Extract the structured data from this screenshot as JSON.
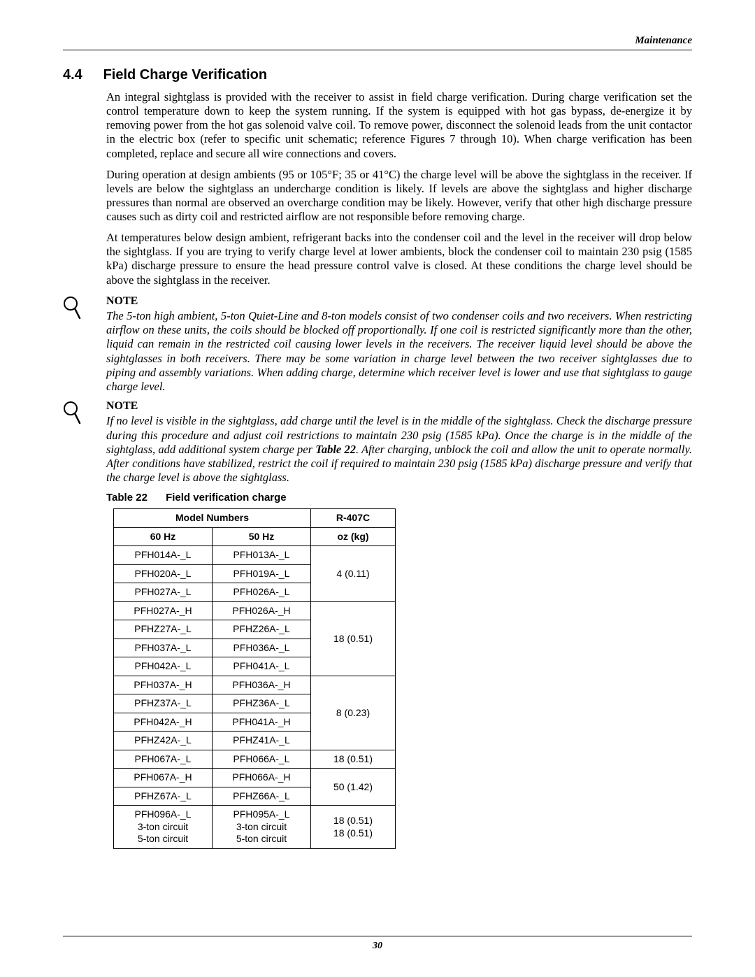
{
  "header": {
    "right_label": "Maintenance"
  },
  "section": {
    "number": "4.4",
    "title": "Field Charge Verification",
    "paragraphs": [
      "An integral sightglass is provided with the receiver to assist in field charge verification. During charge verification set the control temperature down to keep the system running. If the system is equipped with hot gas bypass, de-energize it by removing power from the hot gas solenoid valve coil. To remove power, disconnect the solenoid leads from the unit contactor in the electric box (refer to specific unit schematic; reference Figures 7 through 10). When charge verification has been completed, replace and secure all wire connections and covers.",
      "During operation at design ambients (95 or 105°F; 35 or 41°C) the charge level will be above the sightglass in the receiver. If levels are below the sightglass an undercharge condition is likely. If levels are above the sightglass and higher discharge pressures than normal are observed an overcharge condition may be likely. However, verify that other high discharge pressure causes such as dirty coil and restricted airflow are not responsible before removing charge.",
      "At temperatures below design ambient, refrigerant backs into the condenser coil and the level in the receiver will drop below the sightglass. If you are trying to verify charge level at lower ambients, block the condenser coil to maintain 230 psig (1585 kPa) discharge pressure to ensure the head pressure control valve is closed. At these conditions the charge level should be above the sightglass in the receiver."
    ]
  },
  "notes": [
    {
      "heading": "NOTE",
      "body_html": "The 5-ton high ambient, 5-ton Quiet-Line and 8-ton models consist of two condenser coils and two receivers. When restricting airflow on these units, the coils should be blocked off proportionally. If one coil is restricted significantly more than the other, liquid can remain in the restricted coil causing lower levels in the receivers. The receiver liquid level should be above the sightglasses in both receivers. There may be some variation in charge level between the two receiver sightglasses due to piping and assembly variations. When adding charge, determine which receiver level is lower and use that sightglass to gauge charge level."
    },
    {
      "heading": "NOTE",
      "body_html": "If no level is visible in the sightglass, add charge until the level is in the middle of the sightglass. Check the discharge pressure during this procedure and adjust coil restrictions to maintain 230 psig (1585 kPa). Once the charge is in the middle of the sightglass, add additional system charge per <b>Table 22</b>. After charging, unblock the coil and allow the unit to operate normally. After conditions have stabilized, restrict the coil if required to maintain 230 psig (1585 kPa) discharge pressure and verify that the charge level is above the sightglass."
    }
  ],
  "table": {
    "label": "Table 22",
    "caption": "Field verification charge",
    "head": {
      "model_numbers": "Model Numbers",
      "r407c": "R-407C",
      "col_60hz": "60 Hz",
      "col_50hz": "50 Hz",
      "col_ozkg": "oz (kg)"
    },
    "groups": [
      {
        "rows": [
          [
            "PFH014A-_L",
            "PFH013A-_L"
          ],
          [
            "PFH020A-_L",
            "PFH019A-_L"
          ],
          [
            "PFH027A-_L",
            "PFH026A-_L"
          ]
        ],
        "value": "4 (0.11)"
      },
      {
        "rows": [
          [
            "PFH027A-_H",
            "PFH026A-_H"
          ],
          [
            "PFHZ27A-_L",
            "PFHZ26A-_L"
          ],
          [
            "PFH037A-_L",
            "PFH036A-_L"
          ],
          [
            "PFH042A-_L",
            "PFH041A-_L"
          ]
        ],
        "value": "18 (0.51)"
      },
      {
        "rows": [
          [
            "PFH037A-_H",
            "PFH036A-_H"
          ],
          [
            "PFHZ37A-_L",
            "PFHZ36A-_L"
          ],
          [
            "PFH042A-_H",
            "PFH041A-_H"
          ],
          [
            "PFHZ42A-_L",
            "PFHZ41A-_L"
          ]
        ],
        "value": "8 (0.23)"
      },
      {
        "rows": [
          [
            "PFH067A-_L",
            "PFH066A-_L"
          ]
        ],
        "value": "18 (0.51)"
      },
      {
        "rows": [
          [
            "PFH067A-_H",
            "PFH066A-_H"
          ],
          [
            "PFHZ67A-_L",
            "PFHZ66A-_L"
          ]
        ],
        "value": "50 (1.42)"
      },
      {
        "rows": [
          [
            "PFH096A-_L\n3-ton circuit\n5-ton circuit",
            "PFH095A-_L\n3-ton circuit\n5-ton circuit"
          ]
        ],
        "value": "18 (0.51)\n18 (0.51)"
      }
    ]
  },
  "footer": {
    "page_number": "30"
  }
}
